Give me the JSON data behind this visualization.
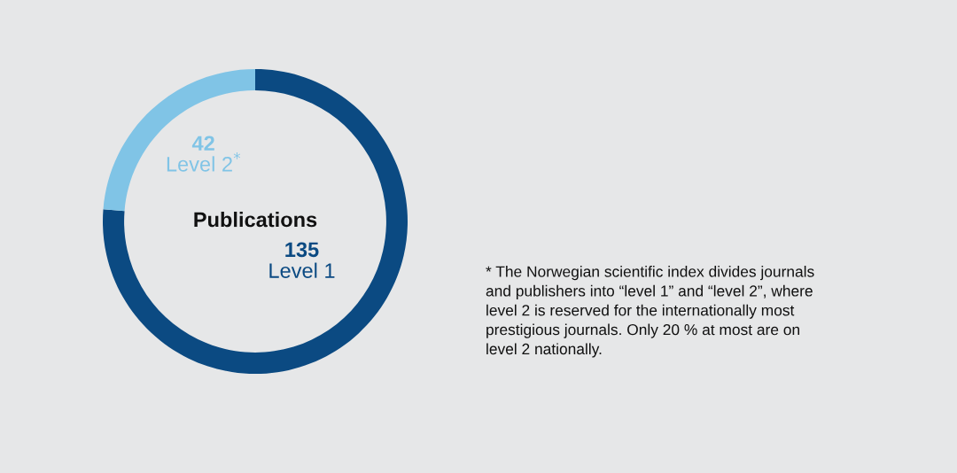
{
  "chart_data": {
    "type": "donut",
    "title": "Publications",
    "categories": [
      "Level 1",
      "Level 2$^{*}$"
    ],
    "values": [
      135,
      42
    ],
    "colors": [
      "#0b4a82",
      "#80c4e6"
    ],
    "data_labels": true,
    "legend": false,
    "annotations": [
      "* The Norwegian scientific index divides journals\nand publishers into “level 1” and “level 2”, where\nlevel 2 is reserved for the internationally most\nprestigious journals. Only 20 % at most are on\nlevel 2 nationally."
    ]
  }
}
